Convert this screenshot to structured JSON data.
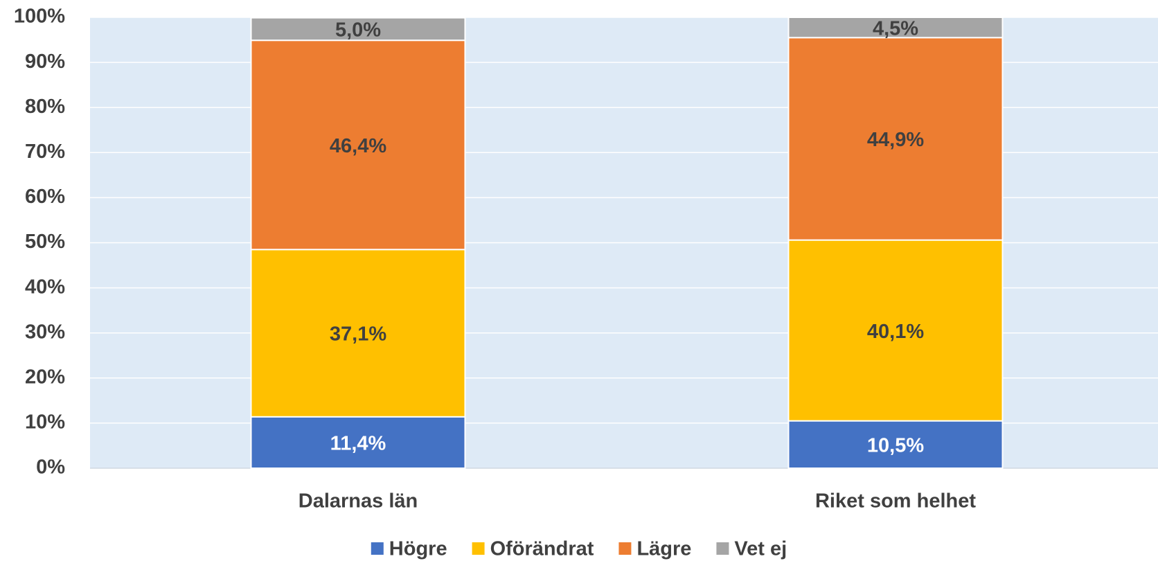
{
  "chart_data": {
    "type": "stacked_bar",
    "categories": [
      "Dalarnas län",
      "Riket som helhet"
    ],
    "series": [
      {
        "name": "Högre",
        "color": "#4472c4",
        "label_color": "#ffffff",
        "values": [
          11.4,
          10.5
        ],
        "value_labels": [
          "11,4%",
          "10,5%"
        ]
      },
      {
        "name": "Oförändrat",
        "color": "#ffc000",
        "label_color": "#404040",
        "values": [
          37.1,
          40.1
        ],
        "value_labels": [
          "37,1%",
          "40,1%"
        ]
      },
      {
        "name": "Lägre",
        "color": "#ed7d31",
        "label_color": "#404040",
        "values": [
          46.4,
          44.9
        ],
        "value_labels": [
          "46,4%",
          "44,9%"
        ]
      },
      {
        "name": "Vet ej",
        "color": "#a5a5a5",
        "label_color": "#404040",
        "values": [
          5.0,
          4.5
        ],
        "value_labels": [
          "5,0%",
          "4,5%"
        ]
      }
    ],
    "ylim": [
      0,
      100
    ],
    "yticks": [
      {
        "value": 0,
        "label": "0%"
      },
      {
        "value": 10,
        "label": "10%"
      },
      {
        "value": 20,
        "label": "20%"
      },
      {
        "value": 30,
        "label": "30%"
      },
      {
        "value": 40,
        "label": "40%"
      },
      {
        "value": 50,
        "label": "50%"
      },
      {
        "value": 60,
        "label": "60%"
      },
      {
        "value": 70,
        "label": "70%"
      },
      {
        "value": 80,
        "label": "80%"
      },
      {
        "value": 90,
        "label": "90%"
      },
      {
        "value": 100,
        "label": "100%"
      }
    ],
    "grid": true,
    "legend": "bottom"
  }
}
